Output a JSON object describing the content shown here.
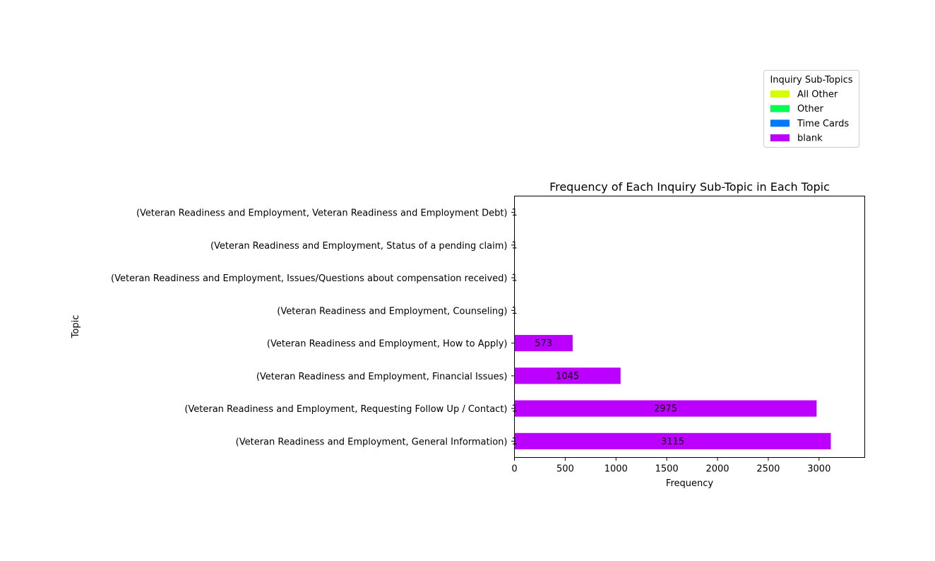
{
  "chart_data": {
    "type": "bar",
    "orientation": "horizontal",
    "stacked": true,
    "title": "Frequency of Each Inquiry Sub-Topic in Each Topic",
    "xlabel": "Frequency",
    "ylabel": "Topic",
    "xlim": [
      0,
      3450
    ],
    "xticks": [
      0,
      500,
      1000,
      1500,
      2000,
      2500,
      3000
    ],
    "grid": false,
    "legend": {
      "title": "Inquiry Sub-Topics",
      "placement": "top-right, outside plot area"
    },
    "categories": [
      "(Veteran Readiness and Employment, General Information)",
      "(Veteran Readiness and Employment, Requesting Follow Up / Contact)",
      "(Veteran Readiness and Employment, Financial Issues)",
      "(Veteran Readiness and Employment, How to Apply)",
      "(Veteran Readiness and Employment, Counseling)",
      "(Veteran Readiness and Employment, Issues/Questions about compensation received)",
      "(Veteran Readiness and Employment, Status of a pending claim)",
      "(Veteran Readiness and Employment, Veteran Readiness and Employment Debt)"
    ],
    "series": [
      {
        "name": "All Other",
        "color": "#d4ff00",
        "values": [
          1,
          1,
          null,
          null,
          null,
          null,
          null,
          null
        ]
      },
      {
        "name": "Other",
        "color": "#00ff55",
        "values": [
          null,
          null,
          null,
          null,
          1,
          1,
          null,
          1
        ]
      },
      {
        "name": "Time Cards",
        "color": "#0077ff",
        "values": [
          null,
          null,
          null,
          null,
          null,
          null,
          1,
          null
        ]
      },
      {
        "name": "blank",
        "color": "#bb00ff",
        "values": [
          3115,
          2975,
          1045,
          573,
          null,
          null,
          null,
          null
        ]
      }
    ],
    "data_labels": [
      [
        "1",
        "",
        "",
        "3115"
      ],
      [
        "1",
        "",
        "",
        "2975"
      ],
      [
        "",
        "",
        "",
        "1045"
      ],
      [
        "",
        "",
        "",
        "573"
      ],
      [
        "",
        "1",
        "",
        ""
      ],
      [
        "",
        "1",
        "",
        ""
      ],
      [
        "",
        "",
        "1",
        ""
      ],
      [
        "",
        "1",
        "",
        ""
      ]
    ]
  }
}
